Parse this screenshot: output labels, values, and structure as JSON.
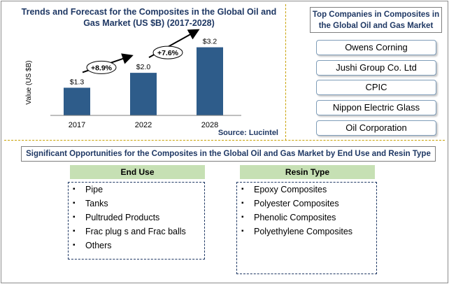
{
  "chart_data": {
    "type": "bar",
    "title": "Trends and Forecast for the Composites in the Global  Oil and Gas Market (US $B) (2017-2028)",
    "ylabel": "Value (US $B)",
    "xlabel": "",
    "categories": [
      "2017",
      "2022",
      "2028"
    ],
    "values": [
      1.3,
      2.0,
      3.2
    ],
    "data_labels": [
      "$1.3",
      "$2.0",
      "$3.2"
    ],
    "ylim": [
      0,
      4
    ],
    "bar_color": "#2e5c8a",
    "growth_annotations": [
      {
        "label": "+8.9%",
        "from": "2017",
        "to": "2022"
      },
      {
        "label": "+7.6%",
        "from": "2022",
        "to": "2028"
      }
    ],
    "source": "Source: Lucintel",
    "grid": false
  },
  "companies": {
    "title": "Top Companies in Composites in the Global Oil  and Gas Market",
    "items": [
      "Owens Corning",
      "Jushi Group Co. Ltd",
      "CPIC",
      "Nippon Electric Glass",
      "Oil Corporation"
    ]
  },
  "opportunities": {
    "title": "Significant Opportunities for the Composites in the Global Oil and Gas Market  by End Use and Resin Type",
    "end_use": {
      "header": "End Use",
      "items": [
        "Pipe",
        "Tanks",
        "Pultruded Products",
        "Frac plug s and Frac  balls",
        "Others"
      ]
    },
    "resin_type": {
      "header": "Resin Type",
      "items": [
        "Epoxy Composites",
        "Polyester Composites",
        "Phenolic Composites",
        "Polyethylene  Composites"
      ]
    }
  },
  "colors": {
    "title_navy": "#1f3864",
    "bar_blue": "#2e5c8a",
    "divider_gold": "#c8a000",
    "header_green": "#c6e0b4"
  }
}
